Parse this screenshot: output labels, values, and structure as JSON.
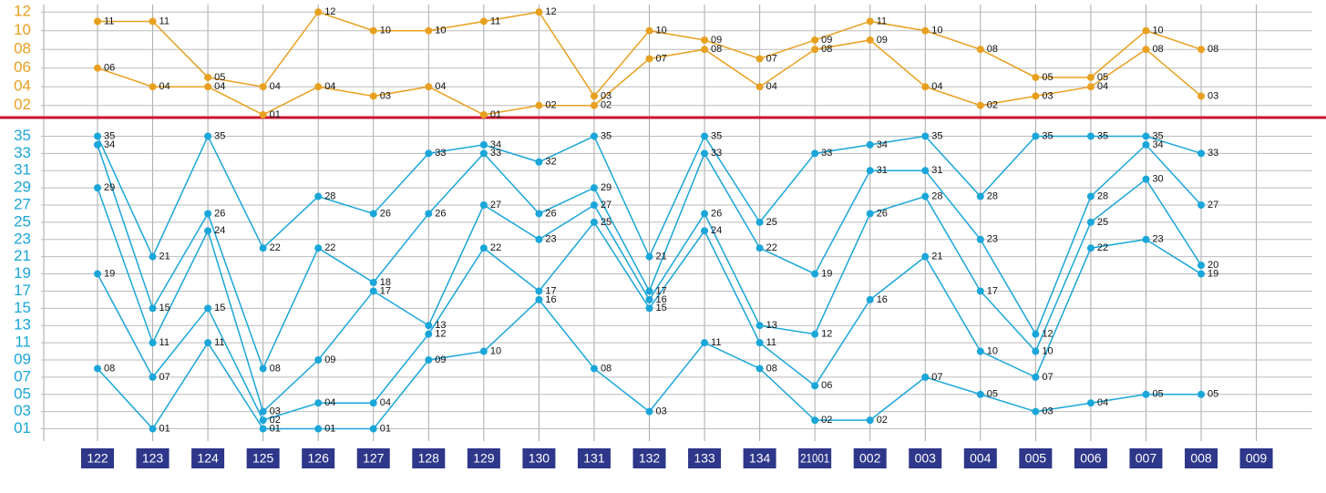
{
  "chart_data": [
    {
      "type": "line",
      "ylim": [
        0.8,
        12.8
      ],
      "yticks": [
        {
          "value": 2,
          "label": "02"
        },
        {
          "value": 4,
          "label": "04"
        },
        {
          "value": 6,
          "label": "06"
        },
        {
          "value": 8,
          "label": "08"
        },
        10,
        12
      ],
      "grid": true,
      "series": [
        {
          "color": "#e8a020",
          "values": [
            11,
            11,
            5,
            4,
            12,
            10,
            10,
            11,
            12,
            3,
            10,
            9,
            7,
            9,
            11,
            10,
            8,
            5,
            5,
            10,
            8,
            null
          ],
          "value_labels": [
            "11",
            "11",
            "05",
            "04",
            "12",
            "10",
            "10",
            "11",
            "12",
            "03",
            "10",
            "09",
            "07",
            "09",
            "11",
            "10",
            "08",
            "05",
            "05",
            "10",
            "08",
            null
          ]
        },
        {
          "color": "#e8a020",
          "values": [
            6,
            4,
            4,
            1,
            4,
            3,
            4,
            1,
            2,
            2,
            7,
            8,
            4,
            8,
            9,
            4,
            2,
            3,
            4,
            8,
            3,
            null
          ],
          "value_labels": [
            "06",
            "04",
            "04",
            "01",
            "04",
            "03",
            "04",
            "01",
            "02",
            "02",
            "07",
            "08",
            "04",
            "08",
            "09",
            "04",
            "02",
            "03",
            "04",
            "08",
            "03",
            null
          ]
        }
      ]
    },
    {
      "type": "line",
      "ylim": [
        0,
        36
      ],
      "yticks": [
        {
          "value": 1,
          "label": "01"
        },
        {
          "value": 3,
          "label": "03"
        },
        {
          "value": 5,
          "label": "05"
        },
        {
          "value": 7,
          "label": "07"
        },
        {
          "value": 9,
          "label": "09"
        },
        11,
        13,
        15,
        17,
        19,
        21,
        23,
        25,
        27,
        29,
        31,
        33,
        35
      ],
      "grid": true,
      "categories": [
        "122",
        "123",
        "124",
        "125",
        "126",
        "127",
        "128",
        "129",
        "130",
        "131",
        "132",
        "133",
        "134",
        "21001",
        "002",
        "003",
        "004",
        "005",
        "006",
        "007",
        "008",
        "009"
      ],
      "series": [
        {
          "color": "#1aa6d9",
          "values": [
            8,
            1,
            11,
            1,
            1,
            1,
            9,
            10,
            16,
            8,
            3,
            11,
            8,
            2,
            2,
            7,
            5,
            3,
            4,
            5,
            5,
            null
          ],
          "value_labels": [
            "08",
            "01",
            "11",
            "01",
            "01",
            "01",
            "09",
            "10",
            "16",
            "08",
            "03",
            "11",
            "08",
            "02",
            "02",
            "07",
            "05",
            "03",
            "04",
            "05",
            "05",
            null
          ]
        },
        {
          "color": "#1aa6d9",
          "values": [
            19,
            7,
            15,
            2,
            4,
            4,
            12,
            22,
            17,
            25,
            15,
            24,
            11,
            6,
            16,
            21,
            10,
            7,
            22,
            23,
            19,
            null
          ],
          "value_labels": [
            "19",
            "07",
            "15",
            "02",
            "04",
            "04",
            "12",
            "22",
            "17",
            "25",
            "15",
            "24",
            "11",
            "06",
            "16",
            "21",
            "10",
            "07",
            "22",
            "23",
            "19",
            null
          ]
        },
        {
          "color": "#1aa6d9",
          "values": [
            29,
            11,
            24,
            3,
            9,
            17,
            13,
            27,
            23,
            27,
            16,
            26,
            13,
            12,
            26,
            28,
            17,
            10,
            25,
            30,
            20,
            null
          ],
          "value_labels": [
            "29",
            "11",
            "24",
            "03",
            "09",
            "17",
            "13",
            "27",
            "23",
            "27",
            "16",
            "26",
            "13",
            "12",
            "26",
            "28",
            "17",
            "10",
            "25",
            "30",
            "20",
            null
          ]
        },
        {
          "color": "#1aa6d9",
          "values": [
            34,
            15,
            26,
            8,
            22,
            18,
            26,
            33,
            26,
            29,
            17,
            33,
            22,
            19,
            31,
            31,
            23,
            12,
            28,
            34,
            27,
            null
          ],
          "value_labels": [
            "34",
            "15",
            "26",
            "08",
            "22",
            "18",
            "26",
            "33",
            "26",
            "29",
            "17",
            "33",
            "22",
            "19",
            "31",
            "31",
            "23",
            "12",
            "28",
            "34",
            "27",
            null
          ]
        },
        {
          "color": "#1aa6d9",
          "values": [
            35,
            21,
            35,
            22,
            28,
            26,
            33,
            34,
            32,
            35,
            21,
            35,
            25,
            33,
            34,
            35,
            28,
            35,
            35,
            35,
            33,
            null
          ],
          "value_labels": [
            "35",
            "21",
            "35",
            "22",
            "28",
            "26",
            "33",
            "34",
            "32",
            "35",
            "21",
            "35",
            "25",
            "33",
            "34",
            "35",
            "28",
            "35",
            "35",
            "35",
            "33",
            null
          ]
        }
      ]
    }
  ]
}
